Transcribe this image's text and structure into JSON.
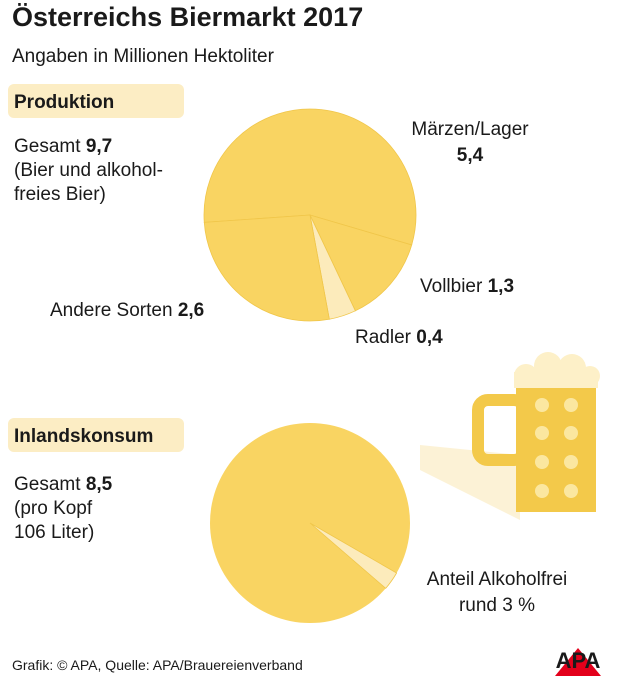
{
  "header": {
    "title": "Österreichs Biermarkt 2017",
    "subtitle": "Angaben in Millionen Hektoliter"
  },
  "footer": {
    "source": "Grafik: © APA, Quelle: APA/Brauereienverband",
    "logo": "APA"
  },
  "chart_data": [
    {
      "type": "pie",
      "title": "Produktion",
      "total_text": "Gesamt",
      "total": {
        "value": 9.7,
        "label": "9,7"
      },
      "note": [
        "(Bier und alkohol-",
        "freies Bier)"
      ],
      "categories": [
        "Märzen/Lager",
        "Vollbier",
        "Radler",
        "Andere Sorten"
      ],
      "values": [
        5.4,
        1.3,
        0.4,
        2.6
      ],
      "value_labels": [
        "5,4",
        "1,3",
        "0,4",
        "2,6"
      ],
      "colors": [
        "#f9d462",
        "#f9d462",
        "#fcebbb",
        "#f9d462"
      ]
    },
    {
      "type": "pie",
      "title": "Inlandskonsum",
      "total_text": "Gesamt",
      "total": {
        "value": 8.5,
        "label": "8,5"
      },
      "note": [
        "(pro Kopf",
        "106 Liter)"
      ],
      "categories": [
        "Anteil Alkoholfrei"
      ],
      "values": [
        3
      ],
      "value_labels": [
        "rund 3 %"
      ],
      "colors": [
        "#fcebbb"
      ],
      "base_color": "#f9d462"
    }
  ]
}
